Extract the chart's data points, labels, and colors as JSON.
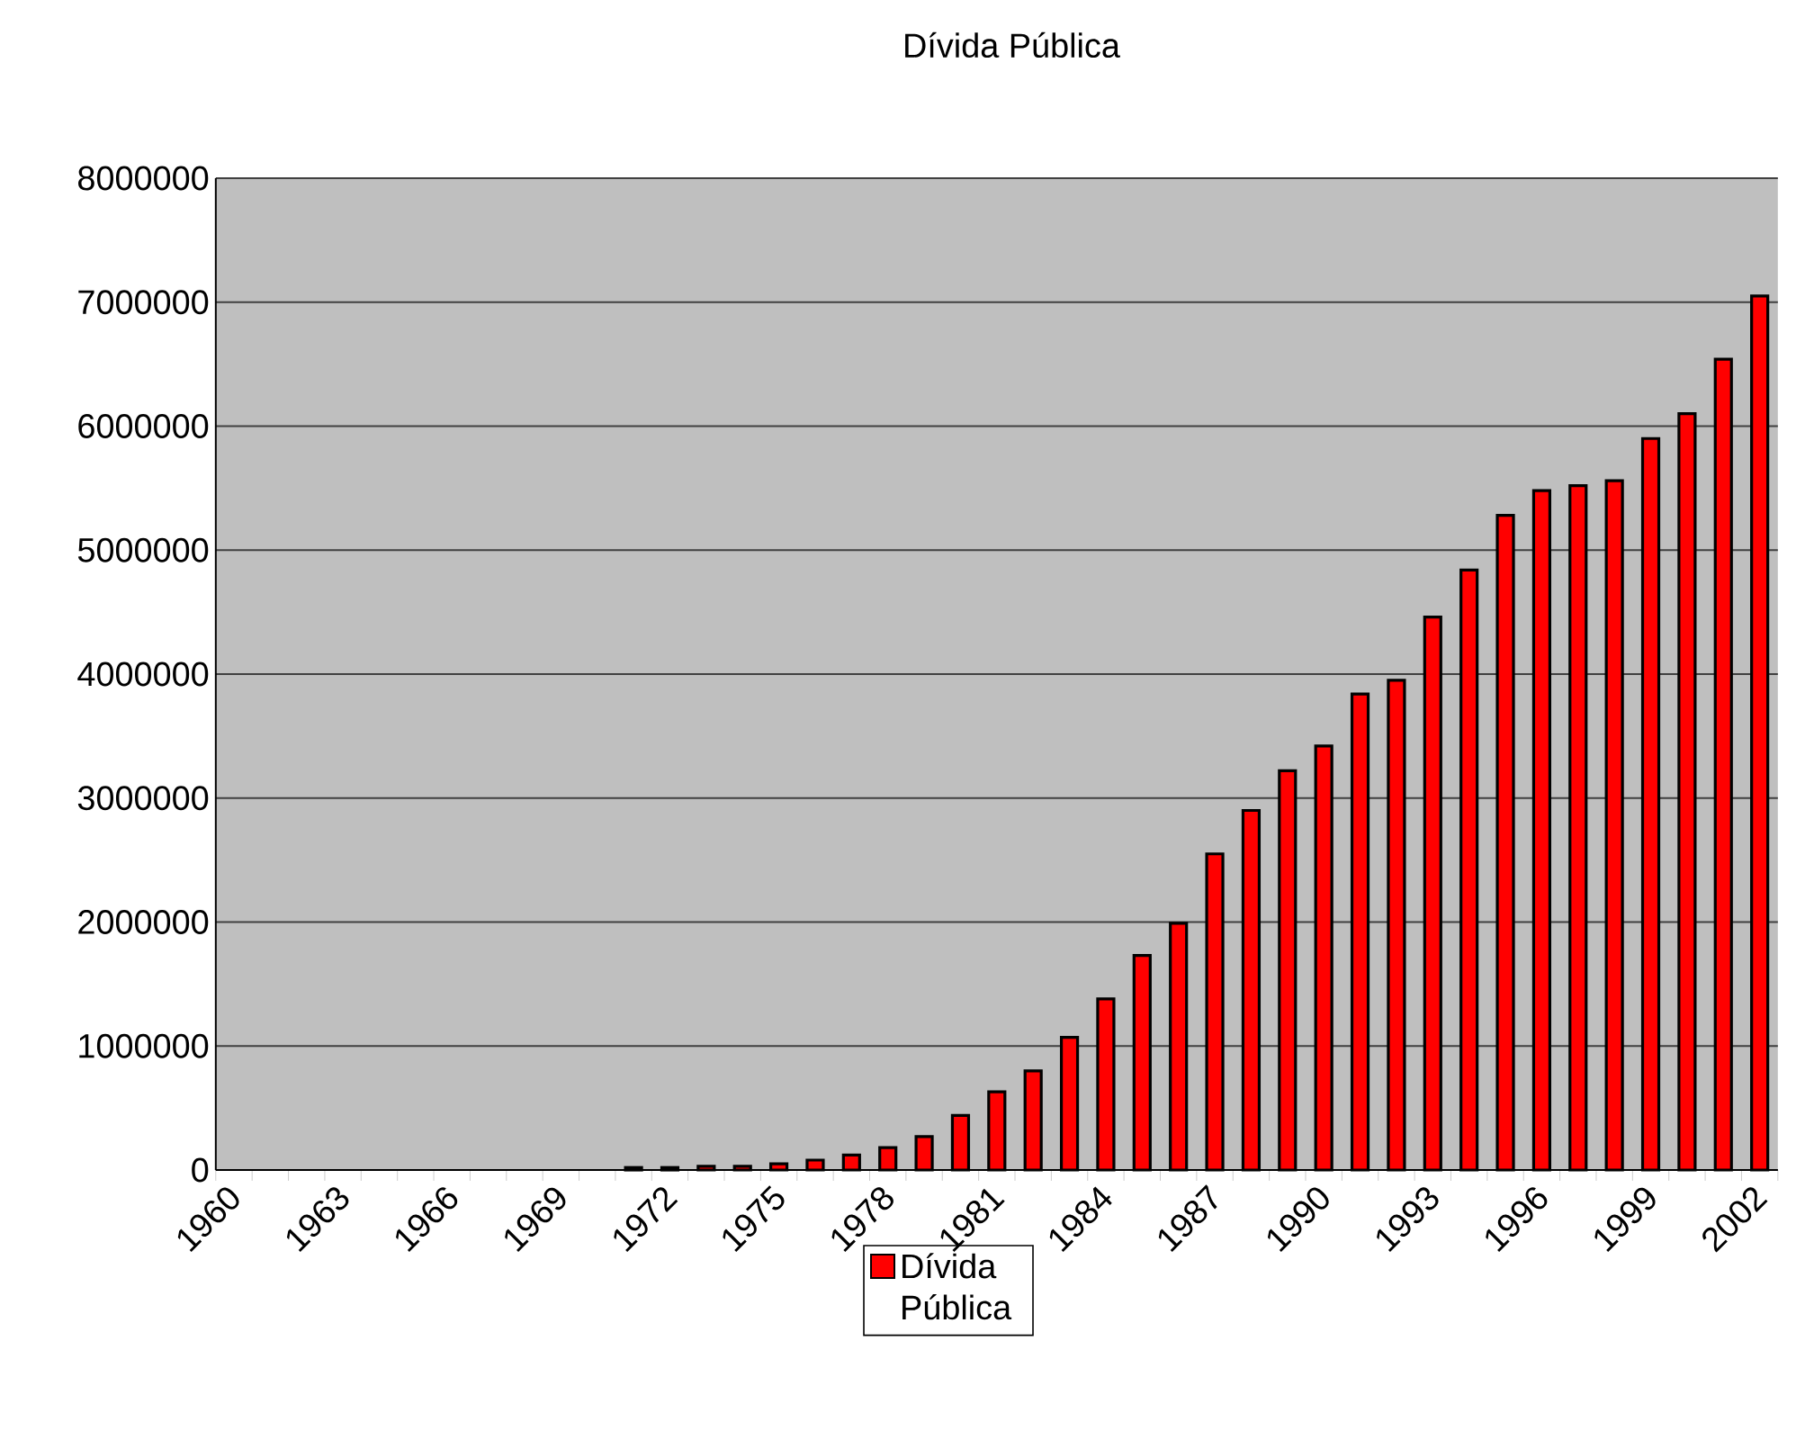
{
  "chart_data": {
    "type": "bar",
    "title": "Dívida Pública",
    "categories": [
      "1960",
      null,
      null,
      "1963",
      null,
      null,
      "1966",
      null,
      null,
      "1969",
      null,
      null,
      "1972",
      null,
      null,
      "1975",
      null,
      null,
      "1978",
      null,
      null,
      "1981",
      null,
      null,
      "1984",
      null,
      null,
      "1987",
      null,
      null,
      "1990",
      null,
      null,
      "1993",
      null,
      null,
      "1996",
      null,
      null,
      "1999",
      null,
      null,
      "2002"
    ],
    "series": [
      {
        "name": "Dívida Pública",
        "color": "#ff0000",
        "values": [
          null,
          null,
          null,
          null,
          null,
          null,
          null,
          null,
          null,
          null,
          null,
          20000,
          20000,
          30000,
          30000,
          50000,
          80000,
          120000,
          180000,
          270000,
          440000,
          630000,
          800000,
          1070000,
          1380000,
          1730000,
          1990000,
          2550000,
          2900000,
          3220000,
          3420000,
          3840000,
          3950000,
          4460000,
          4840000,
          5280000,
          5480000,
          5520000,
          5560000,
          5900000,
          6100000,
          6540000,
          7050000
        ]
      }
    ],
    "ylim": [
      0,
      8000000
    ],
    "yticks": [
      0,
      1000000,
      2000000,
      3000000,
      4000000,
      5000000,
      6000000,
      7000000,
      8000000
    ],
    "grid": "y",
    "legend": "bottom"
  }
}
